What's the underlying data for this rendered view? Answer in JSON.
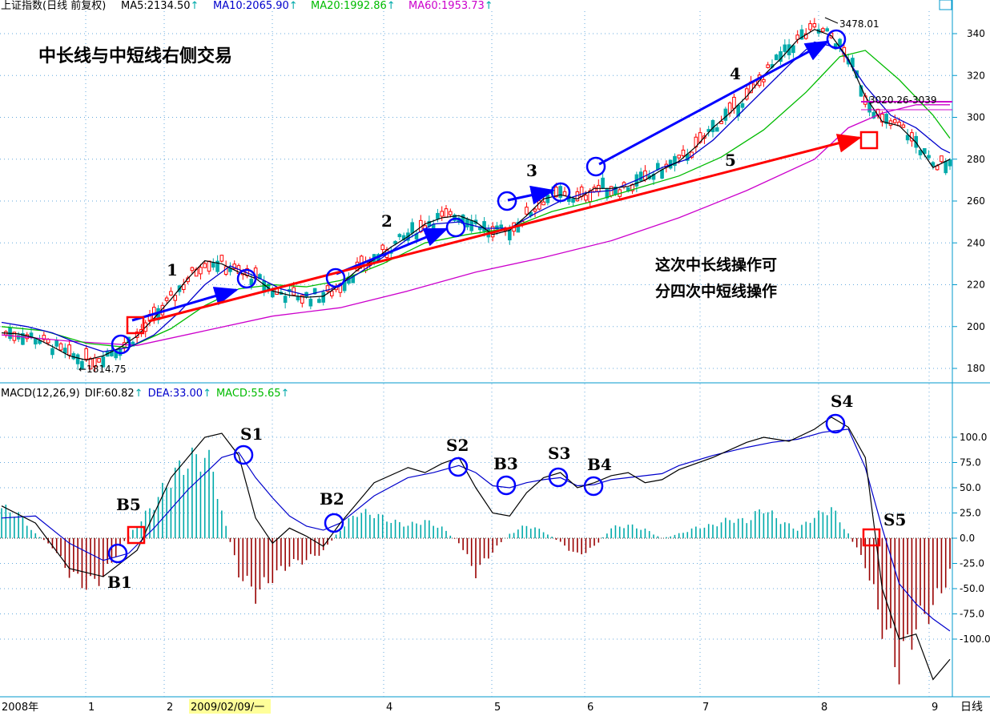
{
  "header": {
    "index_name": "上证指数(日线 前复权)",
    "ma5": "MA5:2134.50",
    "ma10": "MA10:2065.90",
    "ma20": "MA20:1992.86",
    "ma60": "MA60:1953.73",
    "up_arrow": "↑"
  },
  "macd_header": {
    "name": "MACD(12,26,9)",
    "dif": "DIF:60.82",
    "dea": "DEA:33.00",
    "macd": "MACD:55.65"
  },
  "chart_title": "中长线与中短线右侧交易",
  "annotation_lines": [
    "这次中长线操作可",
    "分四次中短线操作"
  ],
  "price_labels": {
    "low": "←1814.75",
    "high": "3478.01",
    "mid": "3020.26-3039"
  },
  "trend_numbers": [
    "1",
    "2",
    "3",
    "4",
    "5"
  ],
  "macd_signal_labels": [
    "B1",
    "B5",
    "S1",
    "B2",
    "S2",
    "B3",
    "S3",
    "B4",
    "S4",
    "S5"
  ],
  "x_axis": {
    "year_label": "2008年",
    "months": [
      "1",
      "2",
      "4",
      "5",
      "6",
      "7",
      "8",
      "9"
    ],
    "highlight_date": "2009/02/09/一",
    "corner_label": "日线"
  },
  "colors": {
    "ma5": "#000000",
    "ma10": "#0000cc",
    "ma20": "#00bb00",
    "ma60": "#cc00cc",
    "up_candle": "#ff0000",
    "down_candle": "#00aaaa",
    "dif": "#000000",
    "dea": "#0000cc",
    "hist_pos": "#00aaaa",
    "hist_neg": "#990000",
    "circle": "#0000ff",
    "square": "#ff0000",
    "arrow_short": "#0000ff",
    "arrow_long": "#ff0000"
  },
  "chart_data": [
    {
      "type": "candlestick",
      "title": "上证指数(日线 前复权)",
      "y_ticks": [
        1800,
        2000,
        2200,
        2400,
        2600,
        2800,
        3000,
        3200,
        3400
      ],
      "y_tick_labels": [
        "180",
        "200",
        "220",
        "240",
        "260",
        "280",
        "300",
        "320",
        "340"
      ],
      "ylim": [
        1780,
        3500
      ],
      "low_point": 1814.75,
      "high_point": 3478.01,
      "resistance_zone": [
        3020.26,
        3039
      ],
      "ma5_last": 2134.5,
      "ma10_last": 2065.9,
      "ma20_last": 1992.86,
      "ma60_last": 1953.73,
      "ma5_path": [
        [
          0,
          1970
        ],
        [
          4,
          1965
        ],
        [
          8,
          1945
        ],
        [
          12,
          1905
        ],
        [
          16,
          1860
        ],
        [
          20,
          1840
        ],
        [
          24,
          1860
        ],
        [
          28,
          1900
        ],
        [
          32,
          1955
        ],
        [
          36,
          2040
        ],
        [
          40,
          2130
        ],
        [
          44,
          2230
        ],
        [
          48,
          2315
        ],
        [
          52,
          2300
        ],
        [
          56,
          2260
        ],
        [
          60,
          2230
        ],
        [
          64,
          2170
        ],
        [
          68,
          2150
        ],
        [
          72,
          2140
        ],
        [
          76,
          2145
        ],
        [
          80,
          2200
        ],
        [
          84,
          2270
        ],
        [
          88,
          2320
        ],
        [
          92,
          2380
        ],
        [
          96,
          2430
        ],
        [
          100,
          2490
        ],
        [
          104,
          2520
        ],
        [
          108,
          2530
        ],
        [
          112,
          2500
        ],
        [
          116,
          2440
        ],
        [
          120,
          2460
        ],
        [
          124,
          2530
        ],
        [
          128,
          2610
        ],
        [
          132,
          2630
        ],
        [
          136,
          2610
        ],
        [
          140,
          2660
        ],
        [
          144,
          2660
        ],
        [
          148,
          2670
        ],
        [
          152,
          2700
        ],
        [
          156,
          2750
        ],
        [
          160,
          2790
        ],
        [
          164,
          2860
        ],
        [
          168,
          2950
        ],
        [
          172,
          3020
        ],
        [
          176,
          3100
        ],
        [
          180,
          3200
        ],
        [
          184,
          3280
        ],
        [
          188,
          3370
        ],
        [
          192,
          3420
        ],
        [
          196,
          3390
        ],
        [
          200,
          3280
        ],
        [
          204,
          3100
        ],
        [
          208,
          2980
        ],
        [
          212,
          2960
        ],
        [
          216,
          2880
        ],
        [
          220,
          2760
        ],
        [
          224,
          2800
        ]
      ],
      "ma10_path": [
        [
          0,
          2020
        ],
        [
          6,
          2000
        ],
        [
          12,
          1970
        ],
        [
          18,
          1920
        ],
        [
          24,
          1880
        ],
        [
          30,
          1900
        ],
        [
          36,
          1960
        ],
        [
          42,
          2070
        ],
        [
          48,
          2200
        ],
        [
          54,
          2290
        ],
        [
          60,
          2240
        ],
        [
          66,
          2180
        ],
        [
          72,
          2150
        ],
        [
          78,
          2180
        ],
        [
          84,
          2250
        ],
        [
          90,
          2330
        ],
        [
          96,
          2420
        ],
        [
          102,
          2490
        ],
        [
          108,
          2500
        ],
        [
          114,
          2470
        ],
        [
          120,
          2470
        ],
        [
          126,
          2540
        ],
        [
          132,
          2600
        ],
        [
          138,
          2640
        ],
        [
          144,
          2650
        ],
        [
          150,
          2700
        ],
        [
          156,
          2760
        ],
        [
          162,
          2800
        ],
        [
          168,
          2890
        ],
        [
          174,
          3010
        ],
        [
          180,
          3130
        ],
        [
          186,
          3250
        ],
        [
          192,
          3360
        ],
        [
          198,
          3330
        ],
        [
          204,
          3150
        ],
        [
          210,
          3010
        ],
        [
          216,
          2950
        ],
        [
          222,
          2850
        ],
        [
          224,
          2830
        ]
      ],
      "ma20_path": [
        [
          0,
          2000
        ],
        [
          10,
          1980
        ],
        [
          20,
          1920
        ],
        [
          30,
          1900
        ],
        [
          40,
          1990
        ],
        [
          48,
          2100
        ],
        [
          56,
          2180
        ],
        [
          64,
          2200
        ],
        [
          72,
          2190
        ],
        [
          80,
          2220
        ],
        [
          90,
          2300
        ],
        [
          100,
          2400
        ],
        [
          110,
          2440
        ],
        [
          120,
          2470
        ],
        [
          130,
          2550
        ],
        [
          140,
          2600
        ],
        [
          150,
          2660
        ],
        [
          160,
          2720
        ],
        [
          170,
          2810
        ],
        [
          180,
          2940
        ],
        [
          190,
          3120
        ],
        [
          198,
          3290
        ],
        [
          204,
          3320
        ],
        [
          212,
          3180
        ],
        [
          220,
          3010
        ],
        [
          224,
          2900
        ]
      ],
      "ma60_path": [
        [
          0,
          1960
        ],
        [
          16,
          1930
        ],
        [
          32,
          1910
        ],
        [
          48,
          1980
        ],
        [
          64,
          2050
        ],
        [
          80,
          2090
        ],
        [
          96,
          2170
        ],
        [
          112,
          2260
        ],
        [
          128,
          2330
        ],
        [
          144,
          2410
        ],
        [
          160,
          2520
        ],
        [
          176,
          2650
        ],
        [
          192,
          2800
        ],
        [
          200,
          2950
        ],
        [
          208,
          3020
        ],
        [
          216,
          3060
        ],
        [
          224,
          3060
        ]
      ]
    },
    {
      "type": "macd",
      "title": "MACD(12,26,9)",
      "y_ticks": [
        100,
        75,
        50,
        25,
        0,
        -25,
        -50,
        -75,
        -100
      ],
      "y_tick_labels": [
        "100.0",
        "75.0",
        "50.0",
        "25.0",
        "0.0",
        "-25.0",
        "-50.0",
        "-75.0",
        "-100.0"
      ],
      "ylim": [
        -135,
        140
      ],
      "dif_last": 60.82,
      "dea_last": 33.0,
      "macd_last": 55.65,
      "dif_path": [
        [
          0,
          32
        ],
        [
          8,
          15
        ],
        [
          16,
          -30
        ],
        [
          24,
          -38
        ],
        [
          32,
          -12
        ],
        [
          40,
          60
        ],
        [
          48,
          100
        ],
        [
          52,
          104
        ],
        [
          56,
          82
        ],
        [
          60,
          20
        ],
        [
          64,
          -5
        ],
        [
          68,
          10
        ],
        [
          72,
          2
        ],
        [
          76,
          -8
        ],
        [
          80,
          15
        ],
        [
          88,
          55
        ],
        [
          96,
          70
        ],
        [
          100,
          65
        ],
        [
          104,
          74
        ],
        [
          108,
          80
        ],
        [
          112,
          50
        ],
        [
          116,
          25
        ],
        [
          120,
          22
        ],
        [
          124,
          45
        ],
        [
          128,
          60
        ],
        [
          132,
          65
        ],
        [
          136,
          50
        ],
        [
          140,
          55
        ],
        [
          144,
          62
        ],
        [
          148,
          65
        ],
        [
          152,
          55
        ],
        [
          156,
          58
        ],
        [
          160,
          68
        ],
        [
          168,
          80
        ],
        [
          176,
          95
        ],
        [
          180,
          100
        ],
        [
          186,
          96
        ],
        [
          192,
          108
        ],
        [
          196,
          120
        ],
        [
          200,
          110
        ],
        [
          204,
          80
        ],
        [
          208,
          -50
        ],
        [
          212,
          -100
        ],
        [
          216,
          -95
        ],
        [
          220,
          -140
        ],
        [
          224,
          -120
        ]
      ],
      "dea_path": [
        [
          0,
          20
        ],
        [
          8,
          22
        ],
        [
          16,
          -5
        ],
        [
          24,
          -22
        ],
        [
          30,
          -15
        ],
        [
          36,
          10
        ],
        [
          44,
          48
        ],
        [
          52,
          80
        ],
        [
          56,
          85
        ],
        [
          60,
          60
        ],
        [
          64,
          40
        ],
        [
          68,
          22
        ],
        [
          72,
          12
        ],
        [
          76,
          8
        ],
        [
          80,
          15
        ],
        [
          88,
          42
        ],
        [
          96,
          60
        ],
        [
          102,
          65
        ],
        [
          108,
          72
        ],
        [
          112,
          65
        ],
        [
          116,
          52
        ],
        [
          120,
          50
        ],
        [
          124,
          55
        ],
        [
          128,
          58
        ],
        [
          132,
          60
        ],
        [
          136,
          52
        ],
        [
          140,
          53
        ],
        [
          144,
          58
        ],
        [
          148,
          60
        ],
        [
          152,
          62
        ],
        [
          156,
          64
        ],
        [
          160,
          72
        ],
        [
          168,
          82
        ],
        [
          176,
          90
        ],
        [
          182,
          95
        ],
        [
          188,
          98
        ],
        [
          194,
          105
        ],
        [
          200,
          108
        ],
        [
          204,
          70
        ],
        [
          208,
          10
        ],
        [
          212,
          -45
        ],
        [
          216,
          -65
        ],
        [
          220,
          -80
        ],
        [
          224,
          -92
        ]
      ],
      "histogram_envelope": [
        [
          0,
          35
        ],
        [
          4,
          28
        ],
        [
          8,
          5
        ],
        [
          12,
          -10
        ],
        [
          16,
          -40
        ],
        [
          20,
          -55
        ],
        [
          24,
          -45
        ],
        [
          28,
          -10
        ],
        [
          32,
          15
        ],
        [
          36,
          40
        ],
        [
          40,
          70
        ],
        [
          44,
          90
        ],
        [
          48,
          95
        ],
        [
          50,
          80
        ],
        [
          52,
          30
        ],
        [
          56,
          -40
        ],
        [
          60,
          -65
        ],
        [
          64,
          -45
        ],
        [
          68,
          -30
        ],
        [
          72,
          -25
        ],
        [
          76,
          -15
        ],
        [
          80,
          10
        ],
        [
          84,
          30
        ],
        [
          88,
          28
        ],
        [
          92,
          20
        ],
        [
          96,
          15
        ],
        [
          100,
          20
        ],
        [
          104,
          12
        ],
        [
          108,
          -5
        ],
        [
          112,
          -40
        ],
        [
          116,
          -15
        ],
        [
          120,
          5
        ],
        [
          124,
          15
        ],
        [
          128,
          8
        ],
        [
          132,
          -5
        ],
        [
          136,
          -20
        ],
        [
          140,
          -10
        ],
        [
          144,
          12
        ],
        [
          148,
          15
        ],
        [
          152,
          10
        ],
        [
          156,
          0
        ],
        [
          160,
          5
        ],
        [
          164,
          12
        ],
        [
          168,
          15
        ],
        [
          172,
          22
        ],
        [
          176,
          20
        ],
        [
          180,
          35
        ],
        [
          184,
          20
        ],
        [
          188,
          10
        ],
        [
          192,
          25
        ],
        [
          196,
          35
        ],
        [
          200,
          5
        ],
        [
          204,
          -30
        ],
        [
          208,
          -100
        ],
        [
          212,
          -150
        ],
        [
          216,
          -100
        ],
        [
          220,
          -80
        ],
        [
          224,
          -40
        ]
      ]
    }
  ]
}
